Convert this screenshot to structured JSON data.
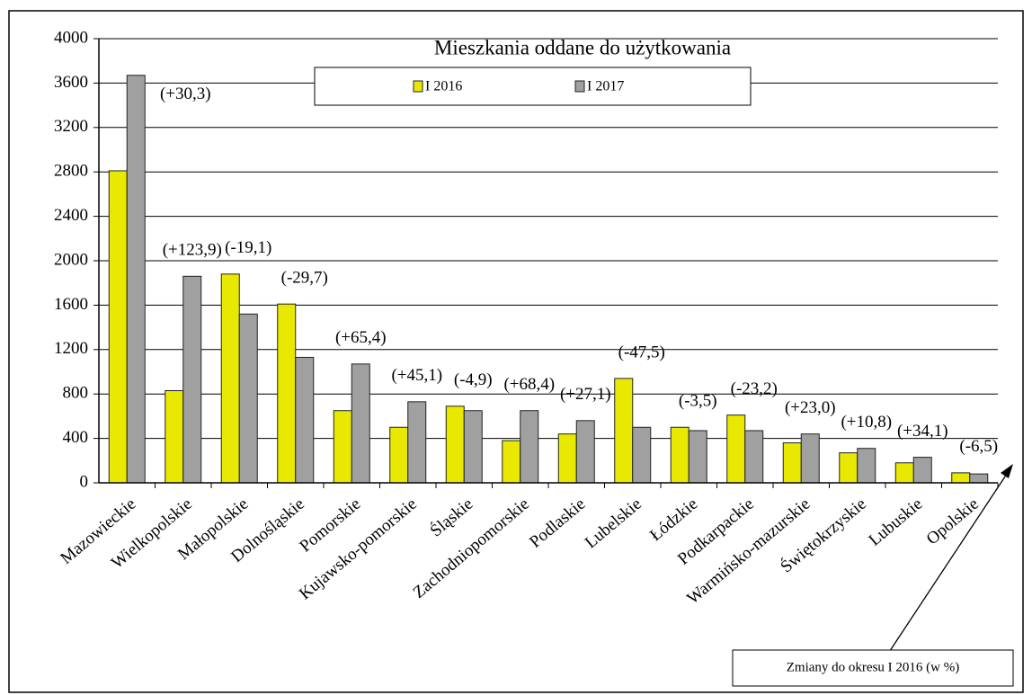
{
  "chart_data": {
    "type": "bar",
    "title": "Mieszkania oddane do użytkowania",
    "categories": [
      "Mazowieckie",
      "Wielkopolskie",
      "Małopolskie",
      "Dolnośląskie",
      "Pomorskie",
      "Kujawsko-pomorskie",
      "Śląskie",
      "Zachodniopomorskie",
      "Podlaskie",
      "Lubelskie",
      "Łódzkie",
      "Podkarpackie",
      "Warmińsko-mazurskie",
      "Świętokrzyskie",
      "Lubuskie",
      "Opolskie"
    ],
    "series": [
      {
        "name": "I 2016",
        "color": "#e8e800",
        "values": [
          2810,
          830,
          1880,
          1610,
          650,
          500,
          690,
          380,
          440,
          940,
          500,
          610,
          360,
          270,
          180,
          90
        ]
      },
      {
        "name": "I 2017",
        "color": "#a0a0a0",
        "values": [
          3670,
          1860,
          1520,
          1130,
          1070,
          730,
          650,
          650,
          560,
          500,
          470,
          470,
          440,
          310,
          230,
          80
        ]
      }
    ],
    "change_labels": [
      "(+30,3)",
      "(+123,9)",
      "(-19,1)",
      "(-29,7)",
      "(+65,4)",
      "(+45,1)",
      "(-4,9)",
      "(+68,4)",
      "(+27,1)",
      "(-47,5)",
      "(-3,5)",
      "(-23,2)",
      "(+23,0)",
      "(+10,8)",
      "(+34,1)",
      "(-6,5)"
    ],
    "annotation": "Zmiany do okresu I 2016 (w %)",
    "ylim": [
      0,
      4000
    ],
    "yticks": [
      0,
      400,
      800,
      1200,
      1600,
      2000,
      2400,
      2800,
      3200,
      3600,
      4000
    ],
    "grid": true
  }
}
